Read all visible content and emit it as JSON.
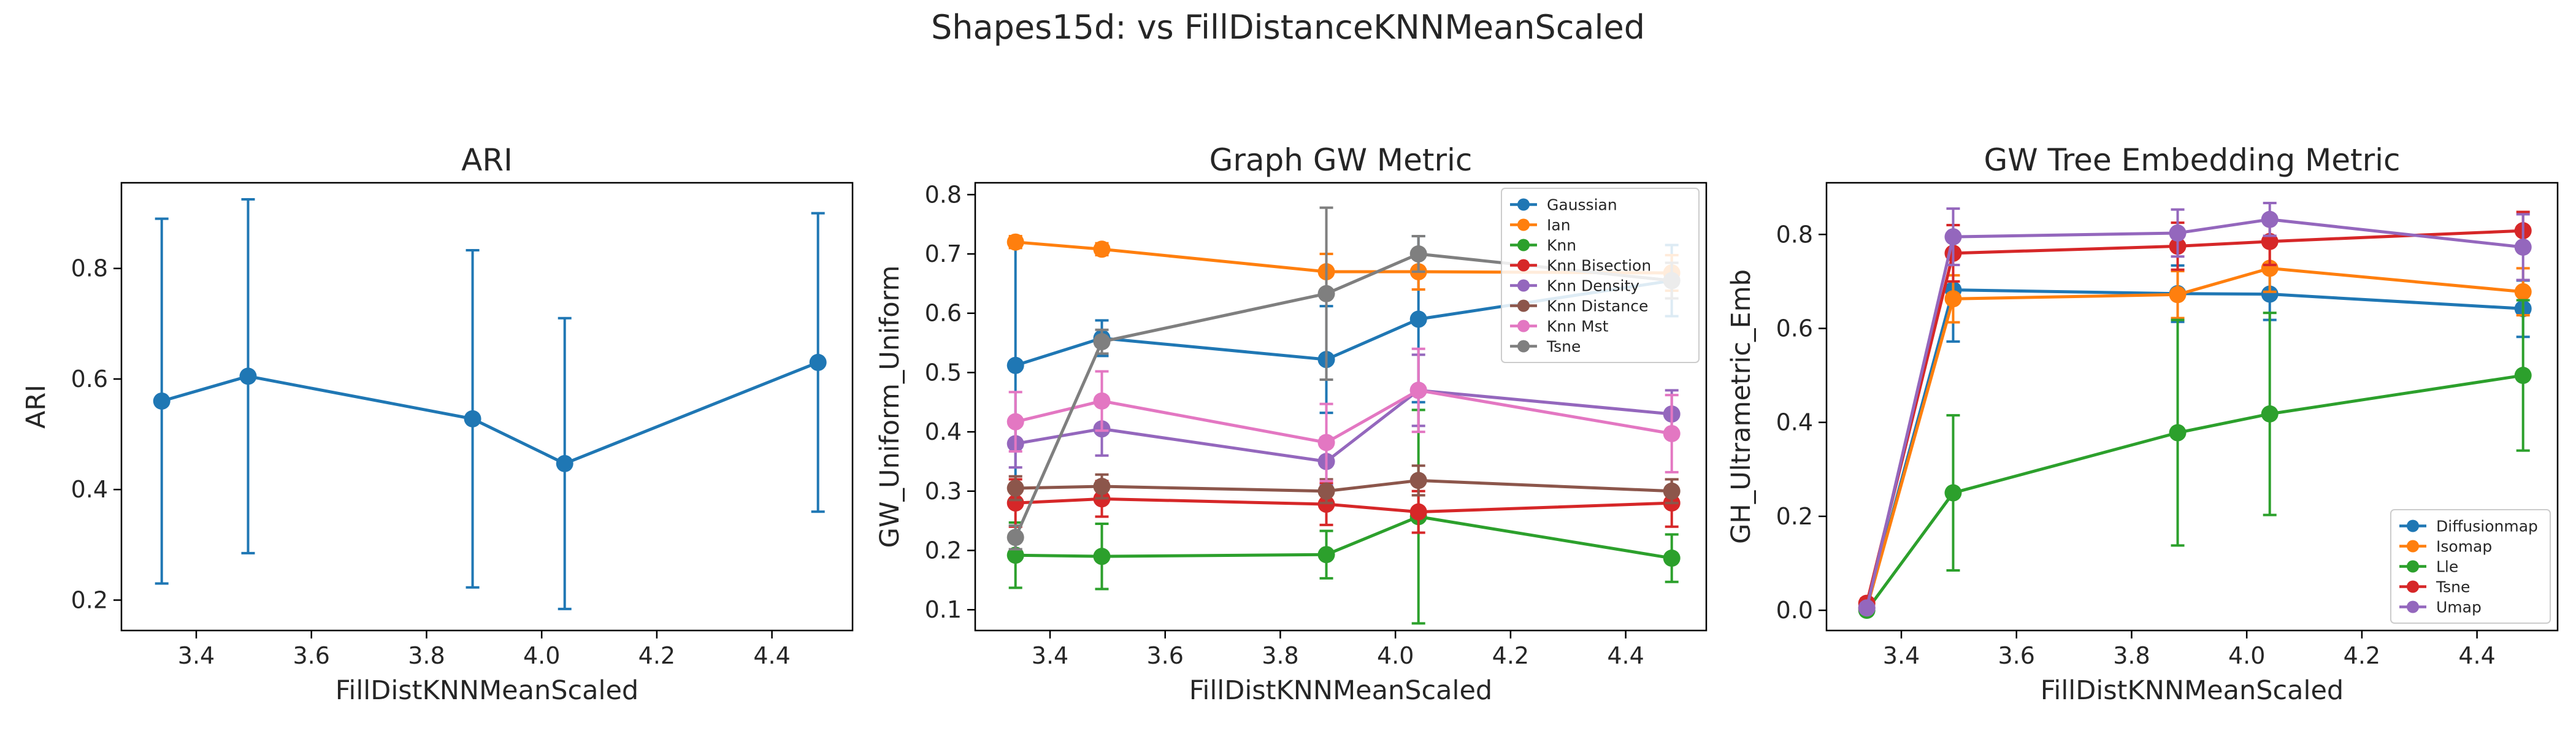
{
  "figure": {
    "title": "Shapes15d: vs FillDistanceKNNMeanScaled"
  },
  "chart_data": [
    {
      "type": "line",
      "title": "ARI",
      "xlabel": "FillDistKNNMeanScaled",
      "ylabel": "ARI",
      "xlim": [
        3.27,
        4.54
      ],
      "ylim": [
        0.145,
        0.955
      ],
      "xticks": [
        3.4,
        3.6,
        3.8,
        4.0,
        4.2,
        4.4
      ],
      "yticks": [
        0.2,
        0.4,
        0.6,
        0.8
      ],
      "x": [
        3.34,
        3.49,
        3.88,
        4.04,
        4.48
      ],
      "series": [
        {
          "name": "",
          "color": "#1f77b4",
          "values": [
            0.56,
            0.605,
            0.528,
            0.447,
            0.63
          ],
          "err": [
            0.33,
            0.32,
            0.305,
            0.263,
            0.27
          ]
        }
      ],
      "legend": null
    },
    {
      "type": "line",
      "title": "Graph GW Metric",
      "xlabel": "FillDistKNNMeanScaled",
      "ylabel": "GW_Uniform_Uniform",
      "xlim": [
        3.27,
        4.54
      ],
      "ylim": [
        0.065,
        0.82
      ],
      "xticks": [
        3.4,
        3.6,
        3.8,
        4.0,
        4.2,
        4.4
      ],
      "yticks": [
        0.1,
        0.2,
        0.3,
        0.4,
        0.5,
        0.6,
        0.7,
        0.8
      ],
      "x": [
        3.34,
        3.49,
        3.88,
        4.04,
        4.48
      ],
      "series": [
        {
          "name": "Gaussian",
          "color": "#1f77b4",
          "values": [
            0.512,
            0.558,
            0.522,
            0.59,
            0.655
          ],
          "err": [
            0.21,
            0.03,
            0.09,
            0.14,
            0.06
          ]
        },
        {
          "name": "Ian",
          "color": "#ff7f0e",
          "values": [
            0.72,
            0.708,
            0.67,
            0.67,
            0.668
          ],
          "err": [
            0.01,
            0.01,
            0.03,
            0.03,
            0.03
          ]
        },
        {
          "name": "Knn",
          "color": "#2ca02c",
          "values": [
            0.192,
            0.19,
            0.193,
            0.257,
            0.187
          ],
          "err": [
            0.055,
            0.055,
            0.04,
            0.18,
            0.04
          ]
        },
        {
          "name": "Knn Bisection",
          "color": "#d62728",
          "values": [
            0.28,
            0.287,
            0.278,
            0.265,
            0.28
          ],
          "err": [
            0.04,
            0.03,
            0.035,
            0.035,
            0.04
          ]
        },
        {
          "name": "Knn Density",
          "color": "#9467bd",
          "values": [
            0.38,
            0.405,
            0.35,
            0.47,
            0.43
          ],
          "err": [
            0.04,
            0.045,
            0.04,
            0.06,
            0.04
          ]
        },
        {
          "name": "Knn Distance",
          "color": "#8c564b",
          "values": [
            0.305,
            0.308,
            0.3,
            0.318,
            0.3
          ],
          "err": [
            0.02,
            0.02,
            0.02,
            0.025,
            0.02
          ]
        },
        {
          "name": "Knn Mst",
          "color": "#e377c2",
          "values": [
            0.417,
            0.452,
            0.382,
            0.47,
            0.397
          ],
          "err": [
            0.05,
            0.05,
            0.065,
            0.07,
            0.065
          ]
        },
        {
          "name": "Tsne",
          "color": "#7f7f7f",
          "values": [
            0.222,
            0.552,
            0.633,
            0.7,
            0.655
          ],
          "err": [
            0.02,
            0.02,
            0.145,
            0.03,
            0.03
          ]
        }
      ],
      "legend": "upper right"
    },
    {
      "type": "line",
      "title": "GW Tree Embedding Metric",
      "xlabel": "FillDistKNNMeanScaled",
      "ylabel": "GH_Ultrametric_Emb",
      "xlim": [
        3.27,
        4.54
      ],
      "ylim": [
        -0.043,
        0.91
      ],
      "xticks": [
        3.4,
        3.6,
        3.8,
        4.0,
        4.2,
        4.4
      ],
      "yticks": [
        0.0,
        0.2,
        0.4,
        0.6,
        0.8
      ],
      "x": [
        3.34,
        3.49,
        3.88,
        4.04,
        4.48
      ],
      "series": [
        {
          "name": "Diffusionmap",
          "color": "#1f77b4",
          "values": [
            0.005,
            0.682,
            0.674,
            0.673,
            0.642
          ],
          "err": [
            0.005,
            0.11,
            0.06,
            0.055,
            0.06
          ]
        },
        {
          "name": "Isomap",
          "color": "#ff7f0e",
          "values": [
            0.005,
            0.663,
            0.672,
            0.728,
            0.678
          ],
          "err": [
            0.005,
            0.05,
            0.05,
            0.05,
            0.05
          ]
        },
        {
          "name": "Lle",
          "color": "#2ca02c",
          "values": [
            0.0,
            0.25,
            0.378,
            0.418,
            0.5
          ],
          "err": [
            0.005,
            0.165,
            0.24,
            0.215,
            0.16
          ]
        },
        {
          "name": "Tsne",
          "color": "#d62728",
          "values": [
            0.015,
            0.76,
            0.775,
            0.785,
            0.808
          ],
          "err": [
            0.01,
            0.06,
            0.05,
            0.05,
            0.04
          ]
        },
        {
          "name": "Umap",
          "color": "#9467bd",
          "values": [
            0.005,
            0.795,
            0.803,
            0.832,
            0.773
          ],
          "err": [
            0.005,
            0.06,
            0.05,
            0.035,
            0.07
          ]
        }
      ],
      "legend": "lower right"
    }
  ]
}
